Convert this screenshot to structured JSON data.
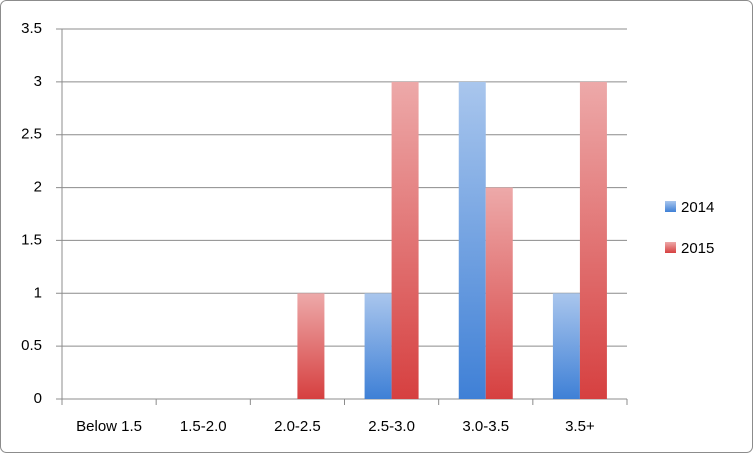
{
  "chart_data": {
    "type": "bar",
    "categories": [
      "Below 1.5",
      "1.5-2.0",
      "2.0-2.5",
      "2.5-3.0",
      "3.0-3.5",
      "3.5+"
    ],
    "series": [
      {
        "name": "2014",
        "color": "#3f80d6",
        "values": [
          0,
          0,
          0,
          1,
          3,
          1
        ]
      },
      {
        "name": "2015",
        "color": "#d64040",
        "values": [
          0,
          0,
          1,
          3,
          2,
          3
        ]
      }
    ],
    "ylim": [
      0,
      3.5
    ],
    "yticks": [
      0,
      0.5,
      1,
      1.5,
      2,
      2.5,
      3,
      3.5
    ],
    "grid": true,
    "legend": "right"
  }
}
